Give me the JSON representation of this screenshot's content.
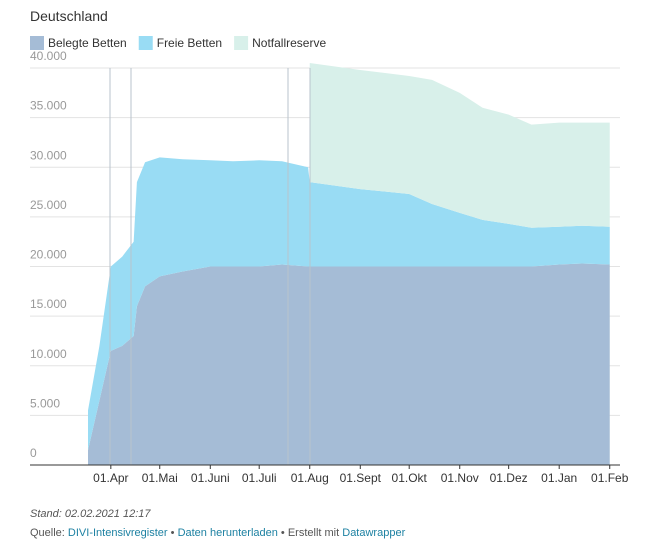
{
  "chart_data": {
    "type": "stacked-area",
    "title": "Deutschland",
    "x": [
      "18.03",
      "25.03",
      "01.04",
      "08.04",
      "15.04",
      "17.04",
      "22.04",
      "01.05",
      "15.05",
      "01.06",
      "15.06",
      "01.07",
      "15.07",
      "31.07",
      "01.08",
      "01.09",
      "01.10",
      "15.10",
      "01.11",
      "15.11",
      "01.12",
      "15.12",
      "01.01",
      "15.01",
      "01.02"
    ],
    "series": [
      {
        "name": "Belegte Betten",
        "color": "#a5bcd6",
        "values": [
          1500,
          6500,
          11500,
          12000,
          13000,
          16000,
          18000,
          19000,
          19500,
          20000,
          20000,
          20000,
          20200,
          20000,
          20000,
          20000,
          20000,
          20000,
          20000,
          20000,
          20000,
          20000,
          20200,
          20300,
          20200
        ]
      },
      {
        "name": "Freie Betten",
        "color": "#99dcf4",
        "values": [
          4000,
          5500,
          8500,
          9000,
          9500,
          12500,
          12500,
          12000,
          11300,
          10700,
          10600,
          10700,
          10400,
          10000,
          8500,
          7800,
          7300,
          6300,
          5400,
          4700,
          4300,
          3900,
          3800,
          3800,
          3800
        ]
      },
      {
        "name": "Notfallreserve",
        "color": "#d8f0ea",
        "values": [
          null,
          null,
          null,
          null,
          null,
          null,
          null,
          null,
          null,
          null,
          null,
          null,
          null,
          null,
          12000,
          12000,
          11900,
          12500,
          12100,
          11300,
          11000,
          10400,
          10500,
          10400,
          10500
        ]
      }
    ],
    "xlim": [
      "18.03",
      "03.02"
    ],
    "xticks": [
      {
        "value": "01.04",
        "label": "01.Apr"
      },
      {
        "value": "01.05",
        "label": "01.Mai"
      },
      {
        "value": "01.06",
        "label": "01.Juni"
      },
      {
        "value": "01.07",
        "label": "01.Juli"
      },
      {
        "value": "01.08",
        "label": "01.Aug"
      },
      {
        "value": "01.09",
        "label": "01.Sept"
      },
      {
        "value": "01.10",
        "label": "01.Okt"
      },
      {
        "value": "01.11",
        "label": "01.Nov"
      },
      {
        "value": "01.12",
        "label": "01.Dez"
      },
      {
        "value": "01.01",
        "label": "01.Jan"
      },
      {
        "value": "01.02",
        "label": "01.Feb"
      }
    ],
    "ylim": [
      0,
      40000
    ],
    "yticks": [
      0,
      {
        "value": 5000,
        "label": "5.000"
      },
      {
        "value": 10000,
        "label": "10.000"
      },
      {
        "value": 15000,
        "label": "15.000"
      },
      {
        "value": 20000,
        "label": "20.000"
      },
      {
        "value": 25000,
        "label": "25.000"
      },
      {
        "value": 30000,
        "label": "30.000"
      },
      {
        "value": 35000,
        "label": "35.000"
      },
      {
        "value": 40000,
        "label": "40.000"
      }
    ],
    "grid": true
  },
  "footer": {
    "stand": "Stand: 02.02.2021 12:17",
    "source_label": "Quelle:",
    "source": "DIVI-Intensivregister",
    "separator": "•",
    "download": "Daten herunterladen",
    "credit": "Erstellt mit",
    "tool": "Datawrapper"
  }
}
